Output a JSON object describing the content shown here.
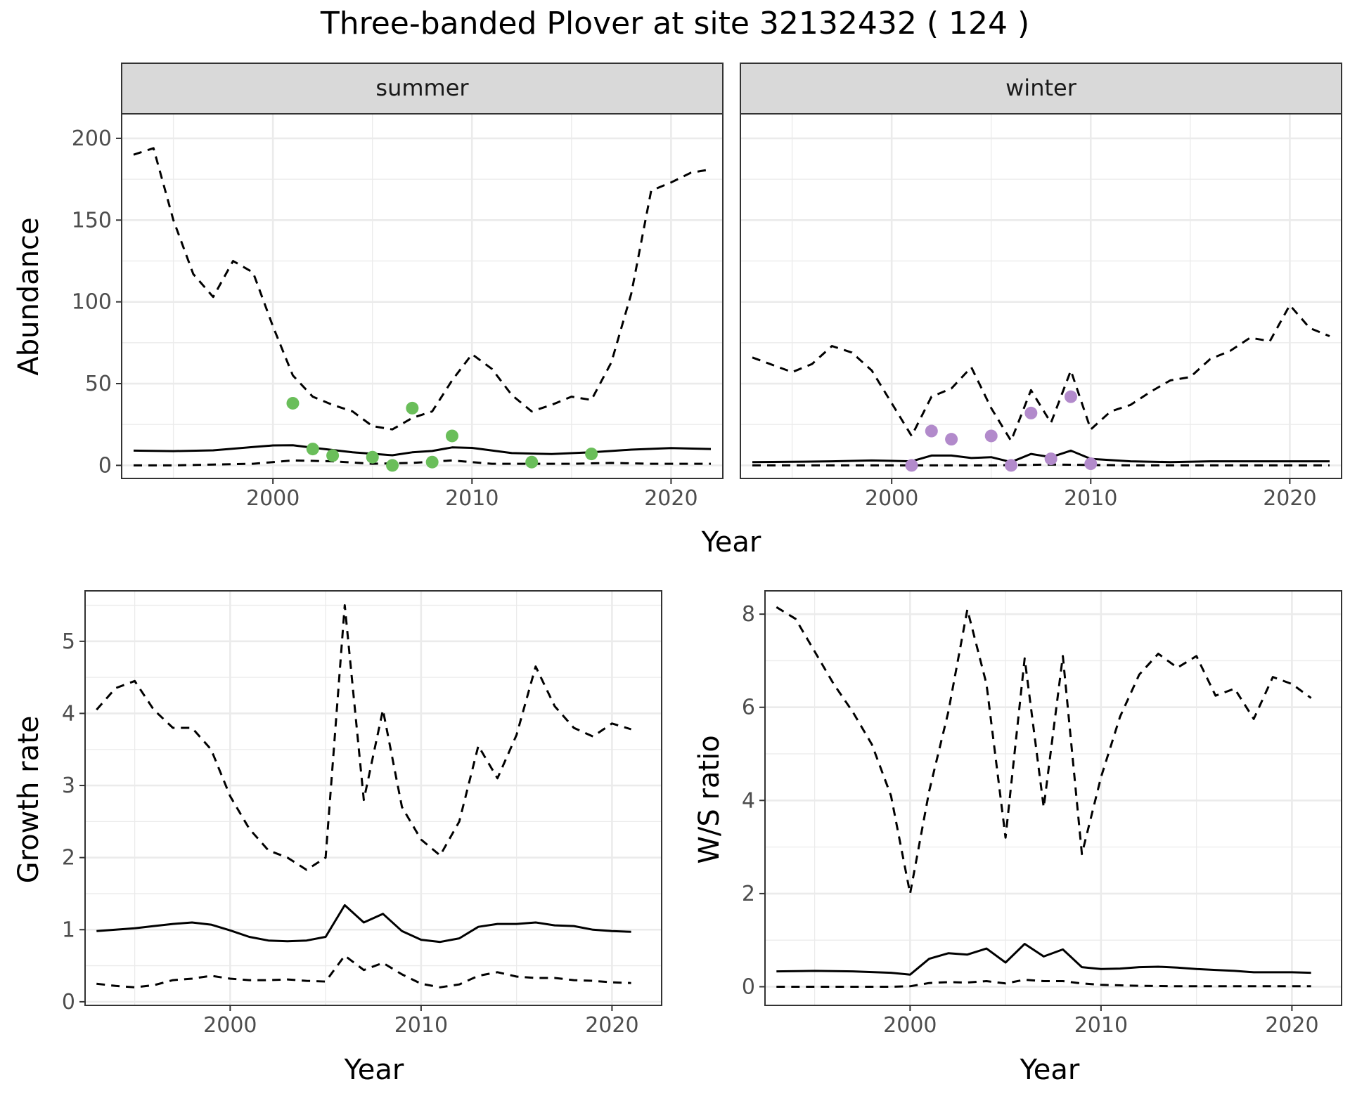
{
  "title": "Three-banded Plover at site 32132432 ( 124 )",
  "colors": {
    "summer_points": "#6ABE5A",
    "winter_points": "#B28ACB",
    "lines": "#000000",
    "strip": "#D9D9D9",
    "grid": "#EBEBEB"
  },
  "chart_data": [
    {
      "type": "line",
      "id": "abundance",
      "ylabel": "Abundance",
      "xlabel": "Year",
      "xlim": [
        1992.4,
        2022.6
      ],
      "ylim": [
        -8,
        215
      ],
      "xticks": [
        2000,
        2010,
        2020
      ],
      "xtick_labels": [
        "2000",
        "2010",
        "2020"
      ],
      "yticks": [
        0,
        50,
        100,
        150,
        200
      ],
      "ytick_labels": [
        "0",
        "50",
        "100",
        "150",
        "200"
      ],
      "grid": true,
      "legend": "none",
      "facets": [
        {
          "label": "summer",
          "series": [
            {
              "role": "estimate",
              "style": "solid",
              "x": [
                1993,
                1995,
                1997,
                1999,
                2000,
                2001,
                2002,
                2004,
                2006,
                2007,
                2008,
                2009,
                2010,
                2012,
                2014,
                2016,
                2018,
                2020,
                2022
              ],
              "y": [
                9,
                8.7,
                9.2,
                11.2,
                12.2,
                12.3,
                10.8,
                8,
                6.2,
                8,
                8.8,
                11,
                10.7,
                7.5,
                6.9,
                8,
                9.6,
                10.6,
                10
              ]
            },
            {
              "role": "upper",
              "style": "dashed",
              "x": [
                1993,
                1994,
                1995,
                1996,
                1997,
                1998,
                1999,
                2000,
                2001,
                2002,
                2003,
                2004,
                2005,
                2006,
                2007,
                2008,
                2009,
                2010,
                2011,
                2012,
                2013,
                2014,
                2015,
                2016,
                2017,
                2018,
                2019,
                2020,
                2021,
                2022
              ],
              "y": [
                190,
                194,
                150,
                117,
                103,
                125,
                118,
                85,
                55,
                42,
                37,
                33,
                24,
                22,
                29,
                33,
                52,
                68,
                59,
                43,
                33,
                37,
                42,
                40,
                63,
                105,
                168,
                173,
                179,
                181
              ]
            },
            {
              "role": "lower",
              "style": "dashed",
              "x": [
                1993,
                1995,
                1997,
                1999,
                2001,
                2003,
                2005,
                2007,
                2009,
                2011,
                2013,
                2015,
                2017,
                2019,
                2022
              ],
              "y": [
                0,
                0,
                0.5,
                1,
                3,
                2.5,
                1,
                1.5,
                3,
                1,
                1,
                1,
                1.5,
                1,
                1
              ]
            }
          ],
          "points": {
            "x": [
              2001,
              2002,
              2003,
              2005,
              2006,
              2007,
              2008,
              2009,
              2013,
              2016
            ],
            "y": [
              38,
              10,
              6,
              5,
              0,
              35,
              2,
              18,
              2,
              7
            ]
          }
        },
        {
          "label": "winter",
          "series": [
            {
              "role": "estimate",
              "style": "solid",
              "x": [
                1993,
                1995,
                1997,
                1999,
                2001,
                2002,
                2003,
                2004,
                2005,
                2006,
                2007,
                2008,
                2009,
                2010,
                2012,
                2014,
                2016,
                2018,
                2020,
                2022
              ],
              "y": [
                2,
                2.2,
                2.5,
                3,
                2.5,
                6,
                6,
                4.5,
                5,
                2,
                7,
                5,
                9,
                4,
                2.5,
                2,
                2.5,
                2.5,
                2.5,
                2.5
              ]
            },
            {
              "role": "upper",
              "style": "dashed",
              "x": [
                1993,
                1995,
                1996,
                1997,
                1998,
                1999,
                2000,
                2001,
                2002,
                2003,
                2004,
                2005,
                2006,
                2007,
                2008,
                2009,
                2010,
                2011,
                2012,
                2013,
                2014,
                2015,
                2016,
                2017,
                2018,
                2019,
                2020,
                2021,
                2022
              ],
              "y": [
                66,
                57,
                62,
                73,
                69,
                58,
                38,
                18,
                42,
                47,
                60,
                35,
                15,
                46,
                26,
                58,
                22,
                33,
                37,
                45,
                52,
                54,
                65,
                70,
                78,
                76,
                98,
                84,
                79
              ]
            },
            {
              "role": "lower",
              "style": "dashed",
              "x": [
                1993,
                2000,
                2005,
                2008,
                2012,
                2022
              ],
              "y": [
                0,
                0,
                0,
                0.5,
                0,
                0
              ]
            }
          ],
          "points": {
            "x": [
              2001,
              2002,
              2003,
              2005,
              2006,
              2007,
              2008,
              2009,
              2010
            ],
            "y": [
              0,
              21,
              16,
              18,
              0,
              32,
              4,
              42,
              1
            ]
          }
        }
      ]
    },
    {
      "type": "line",
      "id": "growth",
      "ylabel": "Growth rate",
      "xlabel": "Year",
      "xlim": [
        1992.4,
        2022.6
      ],
      "ylim": [
        -0.05,
        5.7
      ],
      "xticks": [
        2000,
        2010,
        2020
      ],
      "xtick_labels": [
        "2000",
        "2010",
        "2020"
      ],
      "yticks": [
        0,
        1,
        2,
        3,
        4,
        5
      ],
      "ytick_labels": [
        "0",
        "1",
        "2",
        "3",
        "4",
        "5"
      ],
      "grid": true,
      "legend": "none",
      "series": [
        {
          "role": "estimate",
          "style": "solid",
          "x": [
            1993,
            1994,
            1995,
            1996,
            1997,
            1998,
            1999,
            2000,
            2001,
            2002,
            2003,
            2004,
            2005,
            2006,
            2007,
            2008,
            2009,
            2010,
            2011,
            2012,
            2013,
            2014,
            2015,
            2016,
            2017,
            2018,
            2019,
            2020,
            2021
          ],
          "y": [
            0.98,
            1.0,
            1.02,
            1.05,
            1.08,
            1.1,
            1.07,
            0.99,
            0.9,
            0.85,
            0.84,
            0.85,
            0.9,
            1.34,
            1.1,
            1.22,
            0.98,
            0.86,
            0.83,
            0.88,
            1.04,
            1.08,
            1.08,
            1.1,
            1.06,
            1.05,
            1.0,
            0.98,
            0.97
          ]
        },
        {
          "role": "upper",
          "style": "dashed",
          "x": [
            1993,
            1994,
            1995,
            1996,
            1997,
            1998,
            1999,
            2000,
            2001,
            2002,
            2003,
            2004,
            2005,
            2006,
            2007,
            2008,
            2009,
            2010,
            2011,
            2012,
            2013,
            2014,
            2015,
            2016,
            2017,
            2018,
            2019,
            2020,
            2021
          ],
          "y": [
            4.05,
            4.35,
            4.45,
            4.05,
            3.8,
            3.8,
            3.5,
            2.85,
            2.4,
            2.1,
            2.0,
            1.83,
            2.0,
            5.5,
            2.8,
            4.05,
            2.7,
            2.25,
            2.03,
            2.5,
            3.55,
            3.1,
            3.7,
            4.65,
            4.1,
            3.8,
            3.68,
            3.86,
            3.78
          ]
        },
        {
          "role": "lower",
          "style": "dashed",
          "x": [
            1993,
            1994,
            1995,
            1996,
            1997,
            1998,
            1999,
            2000,
            2001,
            2002,
            2003,
            2004,
            2005,
            2006,
            2007,
            2008,
            2009,
            2010,
            2011,
            2012,
            2013,
            2014,
            2015,
            2016,
            2017,
            2018,
            2019,
            2020,
            2021
          ],
          "y": [
            0.25,
            0.22,
            0.2,
            0.23,
            0.3,
            0.32,
            0.36,
            0.32,
            0.3,
            0.3,
            0.31,
            0.29,
            0.28,
            0.64,
            0.44,
            0.54,
            0.38,
            0.25,
            0.2,
            0.24,
            0.36,
            0.41,
            0.35,
            0.33,
            0.33,
            0.3,
            0.29,
            0.27,
            0.26
          ]
        }
      ]
    },
    {
      "type": "line",
      "id": "ws_ratio",
      "ylabel": "W/S ratio",
      "xlabel": "Year",
      "xlim": [
        1992.4,
        2022.6
      ],
      "ylim": [
        -0.4,
        8.5
      ],
      "xticks": [
        2000,
        2010,
        2020
      ],
      "xtick_labels": [
        "2000",
        "2010",
        "2020"
      ],
      "yticks": [
        0,
        2,
        4,
        6,
        8
      ],
      "ytick_labels": [
        "0",
        "2",
        "4",
        "6",
        "8"
      ],
      "grid": true,
      "legend": "none",
      "series": [
        {
          "role": "estimate",
          "style": "solid",
          "x": [
            1993,
            1995,
            1997,
            1999,
            2000,
            2001,
            2002,
            2003,
            2004,
            2005,
            2006,
            2007,
            2008,
            2009,
            2010,
            2011,
            2012,
            2013,
            2014,
            2015,
            2016,
            2017,
            2018,
            2019,
            2020,
            2021
          ],
          "y": [
            0.33,
            0.34,
            0.33,
            0.3,
            0.26,
            0.6,
            0.72,
            0.69,
            0.82,
            0.52,
            0.92,
            0.65,
            0.8,
            0.42,
            0.38,
            0.39,
            0.42,
            0.43,
            0.41,
            0.38,
            0.36,
            0.34,
            0.31,
            0.31,
            0.31,
            0.3
          ]
        },
        {
          "role": "upper",
          "style": "dashed",
          "x": [
            1993,
            1994,
            1995,
            1996,
            1997,
            1998,
            1999,
            2000,
            2001,
            2002,
            2003,
            2004,
            2005,
            2006,
            2007,
            2008,
            2009,
            2010,
            2011,
            2012,
            2013,
            2014,
            2015,
            2016,
            2017,
            2018,
            2019,
            2020,
            2021
          ],
          "y": [
            8.15,
            7.9,
            7.2,
            6.5,
            5.9,
            5.2,
            4.1,
            2.0,
            4.2,
            5.9,
            8.1,
            6.5,
            3.2,
            7.05,
            3.85,
            7.1,
            2.85,
            4.5,
            5.8,
            6.7,
            7.15,
            6.85,
            7.1,
            6.25,
            6.4,
            5.75,
            6.65,
            6.5,
            6.2
          ]
        },
        {
          "role": "lower",
          "style": "dashed",
          "x": [
            1993,
            1995,
            1997,
            1999,
            2000,
            2001,
            2002,
            2003,
            2004,
            2005,
            2006,
            2007,
            2008,
            2009,
            2010,
            2012,
            2014,
            2016,
            2018,
            2021
          ],
          "y": [
            0,
            0,
            0,
            0,
            0.01,
            0.08,
            0.1,
            0.09,
            0.12,
            0.07,
            0.15,
            0.12,
            0.12,
            0.07,
            0.04,
            0.02,
            0.01,
            0.01,
            0.01,
            0.01
          ]
        }
      ]
    }
  ]
}
